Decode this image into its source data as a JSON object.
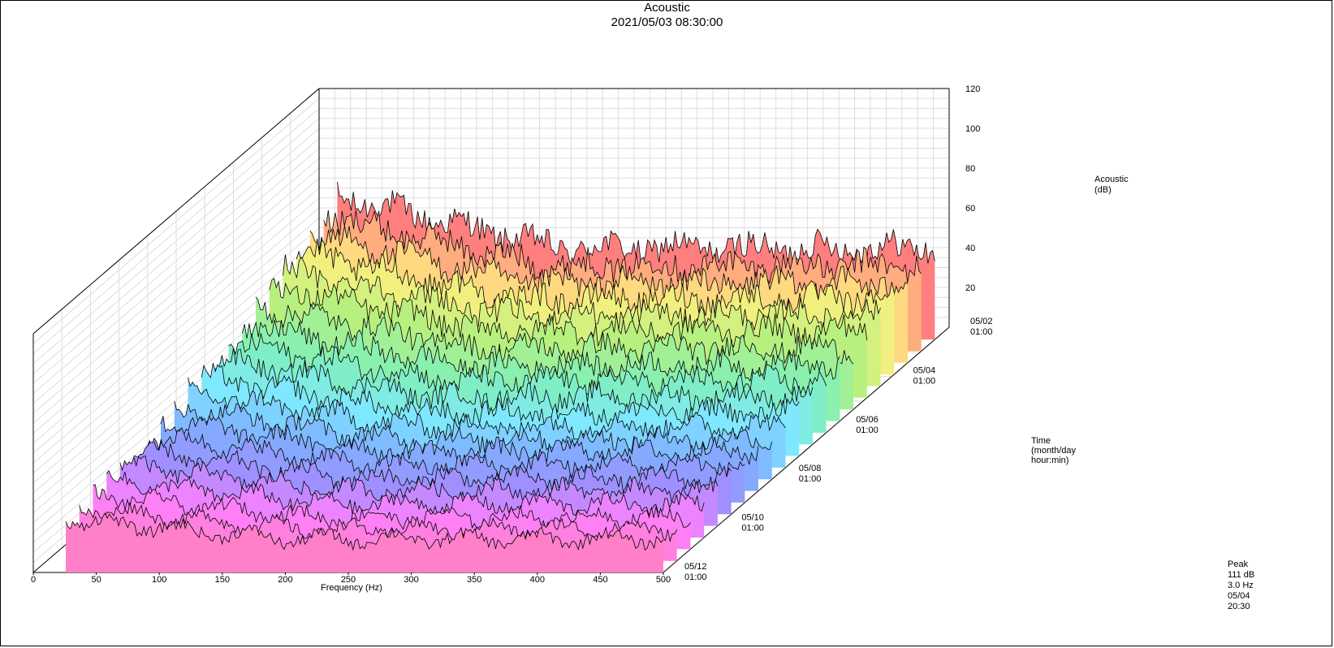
{
  "chart_data": {
    "type": "waterfall-3d",
    "title": "Acoustic",
    "subtitle": "2021/05/03 08:30:00",
    "xlabel": "Frequency (Hz)",
    "x_ticks": [
      0,
      50,
      100,
      150,
      200,
      250,
      300,
      350,
      400,
      450,
      500
    ],
    "xlim": [
      0,
      500
    ],
    "zlabel_line1": "Acoustic",
    "zlabel_line2": "(dB)",
    "z_ticks": [
      20,
      40,
      60,
      80,
      100,
      120
    ],
    "zlim": [
      0,
      120
    ],
    "ylabel_line1": "Time",
    "ylabel_line2": "(month/day",
    "ylabel_line3": "hour:min)",
    "y_ticks": [
      {
        "date": "05/02",
        "time": "01:00"
      },
      {
        "date": "05/04",
        "time": "01:00"
      },
      {
        "date": "05/06",
        "time": "01:00"
      },
      {
        "date": "05/08",
        "time": "01:00"
      },
      {
        "date": "05/10",
        "time": "01:00"
      },
      {
        "date": "05/12",
        "time": "01:00"
      }
    ],
    "grid": true,
    "colors": [
      "#ff7f7f",
      "#fff07f",
      "#b8f07f",
      "#7ff0b8",
      "#7fe8ff",
      "#7fb0ff",
      "#9f8fff",
      "#ff80ff",
      "#ff80c8"
    ],
    "series_levels_db": [
      46,
      43,
      40,
      38,
      36,
      34,
      31,
      28,
      26,
      24,
      22,
      21,
      20,
      20,
      19,
      18,
      18,
      17,
      16,
      16,
      17
    ],
    "peak": {
      "label": "Peak",
      "value": "111 dB",
      "freq": "3.0 Hz",
      "date": "05/04",
      "time": "20:30"
    }
  }
}
